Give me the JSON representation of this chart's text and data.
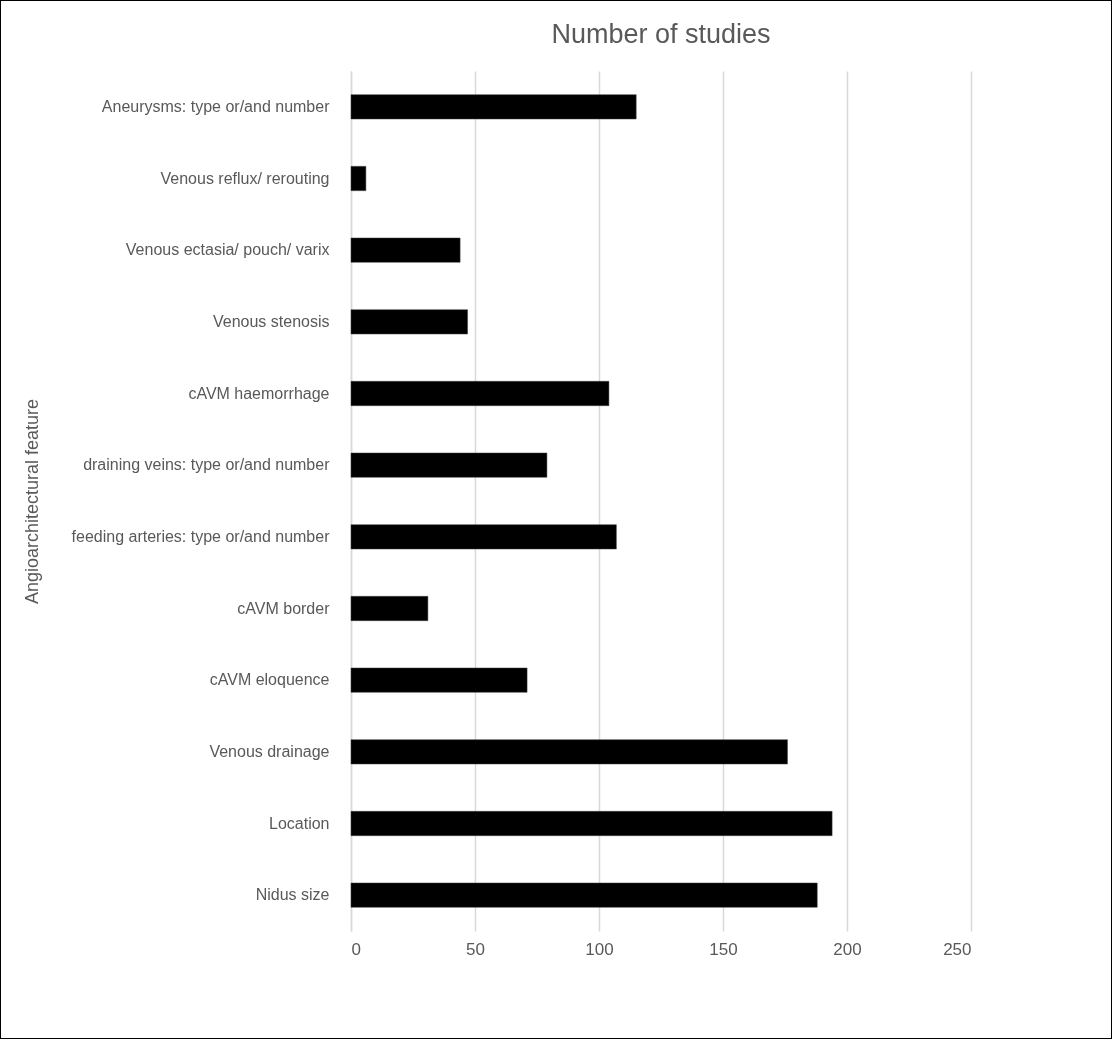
{
  "chart_data": {
    "type": "bar",
    "orientation": "horizontal",
    "title": "Number of studies",
    "ylabel": "Angioarchitectural feature",
    "categories": [
      "Aneurysms: type or/and number",
      "Venous reflux/ rerouting",
      "Venous ectasia/ pouch/ varix",
      "Venous stenosis",
      "cAVM haemorrhage",
      "draining veins: type or/and number",
      "feeding arteries: type or/and number",
      "cAVM border",
      "cAVM eloquence",
      "Venous drainage",
      "Location",
      "Nidus size"
    ],
    "values": [
      115,
      6,
      44,
      47,
      104,
      79,
      107,
      31,
      71,
      176,
      194,
      188
    ],
    "color": "#000000",
    "xlim": [
      0,
      250
    ],
    "xticks": [
      0,
      50,
      100,
      150,
      200,
      250
    ],
    "grid": "x"
  }
}
